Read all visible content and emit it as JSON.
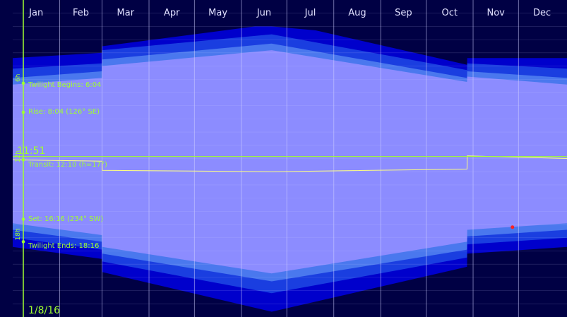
{
  "chart_data": {
    "type": "area",
    "title": "",
    "months": [
      "Jan",
      "Feb",
      "Mar",
      "Apr",
      "May",
      "Jun",
      "Jul",
      "Aug",
      "Sep",
      "Oct",
      "Nov",
      "Dec"
    ],
    "selected_date": "1/8/16",
    "current_time": "11:51",
    "annotations": {
      "twilight_begins": "Twilight Begins: 6:04",
      "rise": "Rise: 8:04 (126° SE)",
      "transit": "Transit: 12:10 (h=17°)",
      "set": "Set: 16:16 (234° SW)",
      "twilight_ends": "Twilight Ends: 18:16"
    },
    "hour_markers": [
      "6h",
      "12h",
      "18h"
    ],
    "x_unit": "day of year",
    "y_unit": "hour of day",
    "series": [
      {
        "key": "astro_dawn",
        "x": [
          0,
          59,
          59.1,
          160,
          171,
          200,
          300,
          300.1,
          366
        ],
        "y": [
          4.4,
          4.0,
          3.5,
          2.0,
          2.0,
          2.3,
          4.9,
          4.4,
          4.4
        ]
      },
      {
        "key": "naut_dawn",
        "x": [
          0,
          59,
          59.1,
          171,
          300,
          300.1,
          366
        ],
        "y": [
          5.2,
          4.8,
          3.8,
          2.6,
          5.3,
          4.8,
          5.2
        ]
      },
      {
        "key": "civil_dawn",
        "x": [
          0,
          59,
          59.1,
          171,
          300,
          300.1,
          366
        ],
        "y": [
          5.9,
          5.4,
          4.5,
          3.3,
          5.9,
          5.4,
          5.9
        ]
      },
      {
        "key": "sunrise",
        "x": [
          0,
          59,
          59.1,
          171,
          300,
          300.1,
          366
        ],
        "y": [
          6.4,
          5.9,
          5.0,
          3.8,
          6.2,
          5.8,
          6.4
        ]
      },
      {
        "key": "sunset",
        "x": [
          0,
          59,
          59.1,
          171,
          300,
          300.1,
          366
        ],
        "y": [
          16.9,
          17.8,
          18.7,
          20.7,
          18.3,
          17.4,
          16.9
        ]
      },
      {
        "key": "civil_dusk",
        "x": [
          0,
          59,
          59.1,
          171,
          300,
          300.1,
          366
        ],
        "y": [
          17.4,
          18.3,
          19.2,
          21.3,
          18.9,
          17.9,
          17.4
        ]
      },
      {
        "key": "naut_dusk",
        "x": [
          0,
          59,
          59.1,
          171,
          300,
          300.1,
          366
        ],
        "y": [
          18.0,
          18.9,
          19.8,
          22.2,
          19.5,
          18.5,
          18.0
        ]
      },
      {
        "key": "astro_dusk",
        "x": [
          0,
          59,
          59.1,
          171,
          300,
          300.1,
          366
        ],
        "y": [
          18.7,
          19.6,
          20.6,
          23.6,
          20.2,
          19.2,
          18.7
        ]
      }
    ],
    "transit": {
      "x": [
        0,
        59,
        59.1,
        171,
        300,
        300.1,
        366
      ],
      "y": [
        12.1,
        12.2,
        12.9,
        13.0,
        12.8,
        11.8,
        12.0
      ]
    },
    "current_time_line": 11.85,
    "selected_day": 7,
    "red_dot": {
      "x": 330,
      "y": 17.2
    },
    "xlim": [
      0,
      366
    ],
    "ylim": [
      0,
      24
    ],
    "colors": {
      "night": "#000044",
      "astro": "#0000cc",
      "nautical": "#1a3ee0",
      "civil": "#4a78ee",
      "day": "#8c8cff",
      "grid": "#d0d0ff",
      "axis_text": "#e0e0ff",
      "annotation": "#a0ff30",
      "transit_line": "#ffff80",
      "dot": "#ff2020"
    }
  }
}
